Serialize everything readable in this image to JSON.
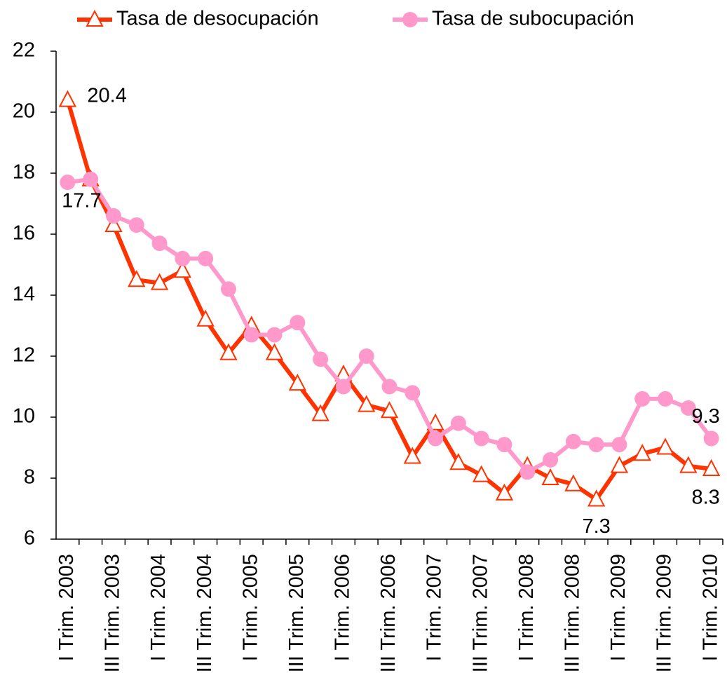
{
  "chart_data": {
    "type": "line",
    "categories": [
      "I Trim. 2003",
      null,
      "III Trim. 2003",
      null,
      "I Trim. 2004",
      null,
      "III Trim. 2004",
      null,
      "I Trim. 2005",
      null,
      "III Trim. 2005",
      null,
      "I Trim. 2006",
      null,
      "III Trim. 2006",
      null,
      "I Trim. 2007",
      null,
      "III Trim. 2007",
      null,
      "I Trim. 2008",
      null,
      "III Trim. 2008",
      null,
      "I Trim. 2009",
      null,
      "III Trim. 2009",
      null,
      "I Trim. 2010"
    ],
    "series": [
      {
        "name": "Tasa de desocupación",
        "color": "#ff3300",
        "marker": "triangle",
        "values": [
          20.4,
          17.8,
          16.3,
          14.5,
          14.4,
          14.8,
          13.2,
          12.1,
          13.0,
          12.1,
          11.1,
          10.1,
          11.4,
          10.4,
          10.2,
          8.7,
          9.8,
          8.5,
          8.1,
          7.5,
          8.4,
          8.0,
          7.8,
          7.3,
          8.4,
          8.8,
          9.0,
          8.4,
          8.3
        ],
        "value_labels": [
          "20.4",
          null,
          null,
          null,
          null,
          null,
          null,
          null,
          null,
          null,
          null,
          null,
          null,
          null,
          null,
          null,
          null,
          null,
          null,
          null,
          null,
          null,
          null,
          "7.3",
          null,
          null,
          null,
          null,
          "8.3"
        ]
      },
      {
        "name": "Tasa de subocupación",
        "color": "#ff99cc",
        "marker": "circle",
        "values": [
          17.7,
          17.8,
          16.6,
          16.3,
          15.7,
          15.2,
          15.2,
          14.2,
          12.7,
          12.7,
          13.1,
          11.9,
          11.0,
          12.0,
          11.0,
          10.8,
          9.3,
          9.8,
          9.3,
          9.1,
          8.2,
          8.6,
          9.2,
          9.1,
          9.1,
          10.6,
          10.6,
          10.3,
          9.3
        ],
        "value_labels": [
          "17.7",
          null,
          null,
          null,
          null,
          null,
          null,
          null,
          null,
          null,
          null,
          null,
          null,
          null,
          null,
          null,
          null,
          null,
          null,
          null,
          null,
          null,
          null,
          null,
          null,
          null,
          null,
          null,
          "9.3"
        ]
      }
    ],
    "ylim": [
      6,
      22
    ],
    "yticks": [
      6,
      8,
      10,
      12,
      14,
      16,
      18,
      20,
      22
    ],
    "grid": false,
    "legend": "top"
  }
}
